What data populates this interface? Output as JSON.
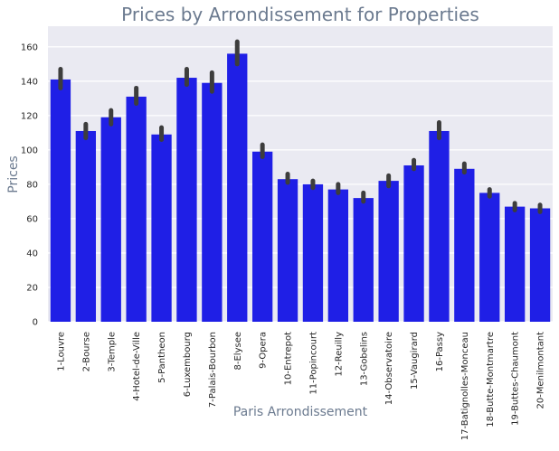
{
  "chart_data": {
    "type": "bar",
    "title": "Prices by Arrondissement for Properties",
    "xlabel": "Paris Arrondissement",
    "ylabel": "Prices",
    "ylim": [
      0,
      172
    ],
    "yticks": [
      0,
      20,
      40,
      60,
      80,
      100,
      120,
      140,
      160
    ],
    "grid": true,
    "categories": [
      "1-Louvre",
      "2-Bourse",
      "3-Temple",
      "4-Hotel-de-Ville",
      "5-Pantheon",
      "6-Luxembourg",
      "7-Palais-Bourbon",
      "8-Elysee",
      "9-Opera",
      "10-Entrepot",
      "11-Popincourt",
      "12-Reuilly",
      "13-Gobelins",
      "14-Observatoire",
      "15-Vaugirard",
      "16-Passy",
      "17-Batignolles-Monceau",
      "18-Butte-Montmartre",
      "19-Buttes-Chaumont",
      "20-Menilmontant"
    ],
    "values": [
      141,
      111,
      119,
      131,
      109,
      142,
      139,
      156,
      99,
      83,
      80,
      77,
      72,
      82,
      91,
      111,
      89,
      75,
      67,
      66
    ],
    "error_low": [
      136,
      107,
      115,
      127,
      106,
      138,
      134,
      150,
      96,
      81,
      78,
      75,
      70,
      79,
      89,
      107,
      87,
      73,
      65,
      64
    ],
    "error_high": [
      147,
      115,
      123,
      136,
      113,
      147,
      145,
      163,
      103,
      86,
      82,
      80,
      75,
      85,
      94,
      116,
      92,
      77,
      69,
      68
    ],
    "colors": {
      "bar": "#1f1fe6",
      "error_bar": "#3d3d3d",
      "plot_bg": "#eaeaf2",
      "grid": "#ffffff"
    }
  }
}
